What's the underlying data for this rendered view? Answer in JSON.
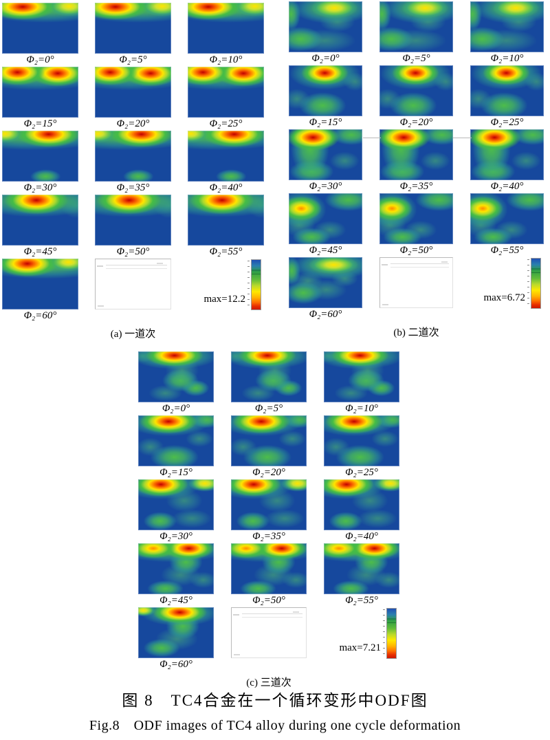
{
  "caption_cn": "图 8　TC4合金在一个循环变形中ODF图",
  "caption_en": "Fig.8　ODF images of TC4 alloy during one cycle deformation",
  "palette": {
    "map_blue": "#16489d",
    "hot_core": "#bf0000",
    "orange": "#ff8c00",
    "yellow": "#ffe400",
    "green": "#45bc46",
    "colorbar_stops": [
      "#1f4fb4",
      "#2e9e46",
      "#b9d92c",
      "#ffe800",
      "#ff7300",
      "#cc1800"
    ]
  },
  "panels": [
    {
      "id": "a",
      "caption": "(a) 一道次",
      "max_label": "max=12.2",
      "tiles": [
        {
          "label": "Φ₂=0°",
          "pattern": "a1"
        },
        {
          "label": "Φ₂=5°",
          "pattern": "a1"
        },
        {
          "label": "Φ₂=10°",
          "pattern": "a1"
        },
        {
          "label": "Φ₂=15°",
          "pattern": "a2"
        },
        {
          "label": "Φ₂=20°",
          "pattern": "a2"
        },
        {
          "label": "Φ₂=25°",
          "pattern": "a2"
        },
        {
          "label": "Φ₂=30°",
          "pattern": "a3"
        },
        {
          "label": "Φ₂=35°",
          "pattern": "a3"
        },
        {
          "label": "Φ₂=40°",
          "pattern": "a3"
        },
        {
          "label": "Φ₂=45°",
          "pattern": "a4"
        },
        {
          "label": "Φ₂=50°",
          "pattern": "a4"
        },
        {
          "label": "Φ₂=55°",
          "pattern": "a4"
        },
        {
          "label": "Φ₂=60°",
          "pattern": "a5"
        }
      ]
    },
    {
      "id": "b",
      "caption": "(b) 二道次",
      "max_label": "max=6.72",
      "tiles": [
        {
          "label": "Φ₂=0°",
          "pattern": "b1"
        },
        {
          "label": "Φ₂=5°",
          "pattern": "b1"
        },
        {
          "label": "Φ₂=10°",
          "pattern": "b1"
        },
        {
          "label": "Φ₂=15°",
          "pattern": "b2"
        },
        {
          "label": "Φ₂=20°",
          "pattern": "b2"
        },
        {
          "label": "Φ₂=25°",
          "pattern": "b2"
        },
        {
          "label": "Φ₂=30°",
          "pattern": "b3"
        },
        {
          "label": "Φ₂=35°",
          "pattern": "b3"
        },
        {
          "label": "Φ₂=40°",
          "pattern": "b3"
        },
        {
          "label": "Φ₂=45°",
          "pattern": "b4"
        },
        {
          "label": "Φ₂=50°",
          "pattern": "b4"
        },
        {
          "label": "Φ₂=55°",
          "pattern": "b4"
        },
        {
          "label": "Φ₂=60°",
          "pattern": "b5"
        }
      ]
    },
    {
      "id": "c",
      "caption": "(c) 三道次",
      "max_label": "max=7.21",
      "tiles": [
        {
          "label": "Φ₂=0°",
          "pattern": "c1"
        },
        {
          "label": "Φ₂=5°",
          "pattern": "c1"
        },
        {
          "label": "Φ₂=10°",
          "pattern": "c1"
        },
        {
          "label": "Φ₂=15°",
          "pattern": "c2"
        },
        {
          "label": "Φ₂=20°",
          "pattern": "c2"
        },
        {
          "label": "Φ₂=25°",
          "pattern": "c2"
        },
        {
          "label": "Φ₂=30°",
          "pattern": "c3"
        },
        {
          "label": "Φ₂=35°",
          "pattern": "c3"
        },
        {
          "label": "Φ₂=40°",
          "pattern": "c3"
        },
        {
          "label": "Φ₂=45°",
          "pattern": "c4"
        },
        {
          "label": "Φ₂=50°",
          "pattern": "c4"
        },
        {
          "label": "Φ₂=55°",
          "pattern": "c4"
        },
        {
          "label": "Φ₂=60°",
          "pattern": "c5"
        }
      ]
    }
  ],
  "patterns": {
    "a1": [
      [
        "hot",
        27,
        8,
        44,
        26
      ],
      [
        "yellow",
        88,
        7,
        28,
        20
      ],
      [
        "green",
        55,
        9,
        95,
        30
      ]
    ],
    "a2": [
      [
        "hot",
        20,
        11,
        36,
        26
      ],
      [
        "hot",
        73,
        13,
        36,
        26
      ],
      [
        "green",
        46,
        12,
        100,
        34
      ]
    ],
    "a3": [
      [
        "hot",
        61,
        7,
        42,
        26
      ],
      [
        "yellow",
        4,
        6,
        24,
        18
      ],
      [
        "green",
        40,
        8,
        105,
        30
      ],
      [
        "green",
        57,
        90,
        20,
        14
      ]
    ],
    "a4": [
      [
        "hot",
        45,
        11,
        42,
        28
      ],
      [
        "green",
        45,
        12,
        85,
        32
      ],
      [
        "faint",
        97,
        22,
        20,
        24
      ]
    ],
    "a5": [
      [
        "hot",
        33,
        10,
        40,
        26
      ],
      [
        "yellow",
        87,
        7,
        26,
        18
      ],
      [
        "green",
        55,
        10,
        95,
        30
      ]
    ],
    "b1": [
      [
        "yellow",
        62,
        13,
        32,
        20
      ],
      [
        "green",
        60,
        14,
        55,
        30
      ],
      [
        "green",
        3,
        25,
        13,
        32
      ],
      [
        "faint",
        66,
        40,
        24,
        20
      ],
      [
        "green",
        16,
        74,
        30,
        24
      ],
      [
        "faint",
        49,
        77,
        42,
        22
      ]
    ],
    "b2": [
      [
        "hot",
        49,
        15,
        32,
        24
      ],
      [
        "green",
        49,
        16,
        48,
        32
      ],
      [
        "green",
        46,
        79,
        32,
        26
      ],
      [
        "faint",
        11,
        66,
        18,
        20
      ],
      [
        "faint",
        90,
        32,
        16,
        18
      ]
    ],
    "b3": [
      [
        "hot",
        33,
        16,
        36,
        26
      ],
      [
        "green",
        29,
        38,
        26,
        55
      ],
      [
        "green",
        85,
        11,
        28,
        20
      ],
      [
        "green",
        31,
        83,
        30,
        22
      ],
      [
        "faint",
        76,
        62,
        20,
        18
      ]
    ],
    "b4": [
      [
        "orange",
        17,
        30,
        28,
        24
      ],
      [
        "green",
        17,
        32,
        34,
        36
      ],
      [
        "green",
        81,
        13,
        32,
        22
      ],
      [
        "faint",
        14,
        62,
        22,
        24
      ],
      [
        "green",
        31,
        86,
        26,
        18
      ],
      [
        "faint",
        56,
        72,
        22,
        18
      ]
    ],
    "b5": [
      [
        "yellow",
        61,
        15,
        34,
        18
      ],
      [
        "green",
        60,
        16,
        55,
        28
      ],
      [
        "green",
        4,
        27,
        12,
        28
      ],
      [
        "faint",
        26,
        47,
        20,
        18
      ],
      [
        "green",
        20,
        70,
        26,
        22
      ],
      [
        "faint",
        51,
        64,
        28,
        20
      ],
      [
        "faint",
        76,
        42,
        18,
        16
      ]
    ],
    "c1": [
      [
        "hot",
        48,
        8,
        38,
        22
      ],
      [
        "green",
        48,
        9,
        58,
        26
      ],
      [
        "faint",
        6,
        9,
        14,
        13
      ],
      [
        "faint",
        58,
        37,
        22,
        30
      ],
      [
        "green",
        56,
        57,
        24,
        22
      ],
      [
        "faint",
        36,
        82,
        22,
        16
      ],
      [
        "green",
        76,
        72,
        18,
        16
      ]
    ],
    "c2": [
      [
        "hot",
        40,
        12,
        38,
        24
      ],
      [
        "green",
        40,
        13,
        55,
        28
      ],
      [
        "green",
        90,
        9,
        20,
        16
      ],
      [
        "green",
        48,
        82,
        32,
        24
      ],
      [
        "faint",
        16,
        62,
        18,
        18
      ],
      [
        "faint",
        81,
        46,
        18,
        16
      ]
    ],
    "c3": [
      [
        "hot",
        30,
        10,
        36,
        24
      ],
      [
        "green",
        30,
        11,
        52,
        28
      ],
      [
        "yellow",
        88,
        8,
        22,
        16
      ],
      [
        "faint",
        61,
        42,
        24,
        22
      ],
      [
        "green",
        29,
        82,
        22,
        18
      ],
      [
        "faint",
        71,
        77,
        26,
        18
      ]
    ],
    "c4": [
      [
        "orange",
        20,
        10,
        30,
        20
      ],
      [
        "hot",
        67,
        10,
        34,
        22
      ],
      [
        "green",
        45,
        11,
        75,
        26
      ],
      [
        "green",
        63,
        37,
        22,
        24
      ],
      [
        "faint",
        56,
        62,
        26,
        22
      ],
      [
        "green",
        36,
        89,
        24,
        16
      ],
      [
        "faint",
        86,
        72,
        18,
        16
      ]
    ],
    "c5": [
      [
        "yellow",
        7,
        6,
        16,
        12
      ],
      [
        "hot",
        55,
        10,
        36,
        22
      ],
      [
        "green",
        55,
        11,
        52,
        26
      ],
      [
        "green",
        59,
        37,
        22,
        26
      ],
      [
        "faint",
        51,
        62,
        28,
        22
      ],
      [
        "green",
        31,
        80,
        24,
        18
      ]
    ]
  }
}
